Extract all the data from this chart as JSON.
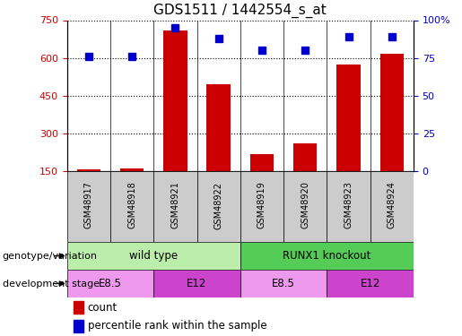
{
  "title": "GDS1511 / 1442554_s_at",
  "samples": [
    "GSM48917",
    "GSM48918",
    "GSM48921",
    "GSM48922",
    "GSM48919",
    "GSM48920",
    "GSM48923",
    "GSM48924"
  ],
  "count_values": [
    158,
    160,
    710,
    495,
    220,
    262,
    575,
    615
  ],
  "percentile_values": [
    76,
    76,
    95,
    88,
    80,
    80,
    89,
    89
  ],
  "ylim_left": [
    150,
    750
  ],
  "ylim_right": [
    0,
    100
  ],
  "yticks_left": [
    150,
    300,
    450,
    600,
    750
  ],
  "yticks_right": [
    0,
    25,
    50,
    75,
    100
  ],
  "bar_color": "#cc0000",
  "dot_color": "#0000cc",
  "genotype_groups": [
    {
      "label": "wild type",
      "start": 0,
      "end": 4,
      "color": "#bbeeaa"
    },
    {
      "label": "RUNX1 knockout",
      "start": 4,
      "end": 8,
      "color": "#55cc55"
    }
  ],
  "dev_stage_groups": [
    {
      "label": "E8.5",
      "start": 0,
      "end": 2,
      "color": "#ee99ee"
    },
    {
      "label": "E12",
      "start": 2,
      "end": 4,
      "color": "#cc44cc"
    },
    {
      "label": "E8.5",
      "start": 4,
      "end": 6,
      "color": "#ee99ee"
    },
    {
      "label": "E12",
      "start": 6,
      "end": 8,
      "color": "#cc44cc"
    }
  ],
  "sample_box_color": "#cccccc",
  "legend_count_color": "#cc0000",
  "legend_pct_color": "#0000cc",
  "left_tick_color": "#cc0000",
  "right_tick_color": "#0000cc"
}
